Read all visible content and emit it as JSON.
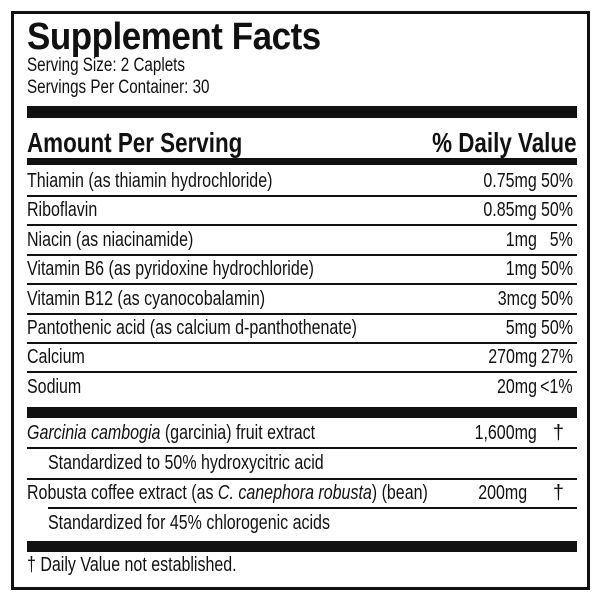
{
  "title": "Supplement Facts",
  "serving_size": "Serving Size: 2 Caplets",
  "servings_per_container": "Servings Per Container: 30",
  "header": {
    "amount": "Amount Per Serving",
    "daily_value": "% Daily Value"
  },
  "nutrients": [
    {
      "name": "Thiamin (as thiamin hydrochloride)",
      "amount": "0.75mg",
      "dv": "50%"
    },
    {
      "name": "Riboflavin",
      "amount": "0.85mg",
      "dv": "50%"
    },
    {
      "name": "Niacin (as niacinamide)",
      "amount": "1mg",
      "dv": "5%"
    },
    {
      "name": "Vitamin B6 (as pyridoxine hydrochloride)",
      "amount": "1mg",
      "dv": "50%"
    },
    {
      "name": "Vitamin B12 (as cyanocobalamin)",
      "amount": "3mcg",
      "dv": "50%"
    },
    {
      "name": "Pantothenic acid (as calcium d-panthothenate)",
      "amount": "5mg",
      "dv": "50%"
    },
    {
      "name": "Calcium",
      "amount": "270mg",
      "dv": "27%"
    },
    {
      "name": "Sodium",
      "amount": "20mg",
      "dv": "<1%"
    }
  ],
  "extracts": [
    {
      "name_parts": [
        {
          "text": "Garcinia cambogia",
          "italic": true
        },
        {
          "text": " (garcinia) fruit extract",
          "italic": false
        }
      ],
      "amount": "1,600mg",
      "dv": "†",
      "note": "Standardized to 50% hydroxycitric acid"
    },
    {
      "name_parts": [
        {
          "text": "Robusta coffee extract (as ",
          "italic": false
        },
        {
          "text": "C. canephora robusta",
          "italic": true
        },
        {
          "text": ") (bean)",
          "italic": false
        }
      ],
      "amount": "200mg",
      "dv": "†",
      "note": "Standardized for 45% chlorogenic acids"
    }
  ],
  "footnote": "† Daily Value not established."
}
